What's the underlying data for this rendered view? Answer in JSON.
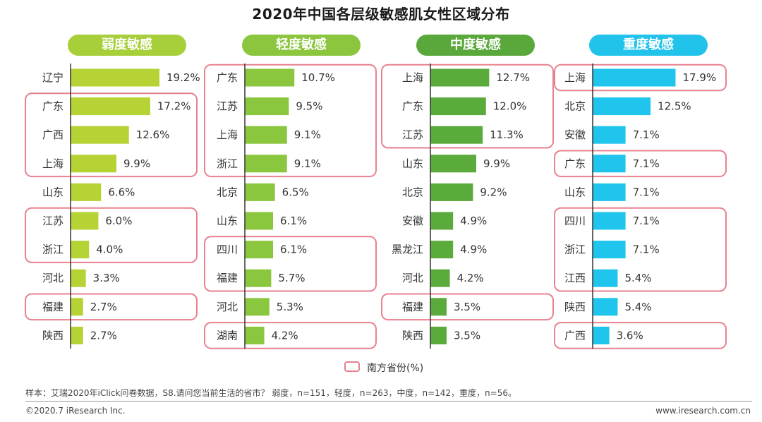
{
  "title": "2020年中国各层级敏感肌女性区域分布",
  "legend": {
    "label": "南方省份(%)",
    "box_color": "#e8818f"
  },
  "footnote": "样本：艾瑞2020年iClick问卷数据，S8.请问您当前生活的省市？ 弱度，n=151，轻度，n=263，中度，n=142，重度，n=56。",
  "copyright": "©2020.7 iResearch Inc.",
  "website": "www.iresearch.com.cn",
  "chart_data": [
    {
      "type": "bar",
      "title": "弱度敏感",
      "color": "#b5d334",
      "header_color": "#a6cf3a",
      "value_max": 19.2,
      "categories": [
        "辽宁",
        "广东",
        "广西",
        "上海",
        "山东",
        "江苏",
        "浙江",
        "河北",
        "福建",
        "陕西"
      ],
      "values": [
        19.2,
        17.2,
        12.6,
        9.9,
        6.6,
        6.0,
        4.0,
        3.3,
        2.7,
        2.7
      ],
      "labels": [
        "19.2%",
        "17.2%",
        "12.6%",
        "9.9%",
        "6.6%",
        "6.0%",
        "4.0%",
        "3.3%",
        "2.7%",
        "2.7%"
      ],
      "southern_groups": [
        [
          1,
          3
        ],
        [
          5,
          6
        ],
        [
          8,
          8
        ]
      ]
    },
    {
      "type": "bar",
      "title": "轻度敏感",
      "color": "#8bc63f",
      "header_color": "#8cc63f",
      "value_max": 19.2,
      "categories": [
        "广东",
        "江苏",
        "上海",
        "浙江",
        "北京",
        "山东",
        "四川",
        "福建",
        "河北",
        "湖南"
      ],
      "values": [
        10.7,
        9.5,
        9.1,
        9.1,
        6.5,
        6.1,
        6.1,
        5.7,
        5.3,
        4.2
      ],
      "labels": [
        "10.7%",
        "9.5%",
        "9.1%",
        "9.1%",
        "6.5%",
        "6.1%",
        "6.1%",
        "5.7%",
        "5.3%",
        "4.2%"
      ],
      "southern_groups": [
        [
          0,
          3
        ],
        [
          6,
          7
        ],
        [
          9,
          9
        ]
      ]
    },
    {
      "type": "bar",
      "title": "中度敏感",
      "color": "#5aaa3c",
      "header_color": "#5aa83c",
      "value_max": 19.2,
      "categories": [
        "上海",
        "广东",
        "江苏",
        "山东",
        "北京",
        "安徽",
        "黑龙江",
        "河北",
        "福建",
        "陕西"
      ],
      "values": [
        12.7,
        12.0,
        11.3,
        9.9,
        9.2,
        4.9,
        4.9,
        4.2,
        3.5,
        3.5
      ],
      "labels": [
        "12.7%",
        "12.0%",
        "11.3%",
        "9.9%",
        "9.2%",
        "4.9%",
        "4.9%",
        "4.2%",
        "3.5%",
        "3.5%"
      ],
      "southern_groups": [
        [
          0,
          2
        ],
        [
          8,
          8
        ]
      ]
    },
    {
      "type": "bar",
      "title": "重度敏感",
      "color": "#1fc5ec",
      "header_color": "#22c3ea",
      "value_max": 19.2,
      "categories": [
        "上海",
        "北京",
        "安徽",
        "广东",
        "山东",
        "四川",
        "浙江",
        "江西",
        "陕西",
        "广西"
      ],
      "values": [
        17.9,
        12.5,
        7.1,
        7.1,
        7.1,
        7.1,
        7.1,
        5.4,
        5.4,
        3.6
      ],
      "labels": [
        "17.9%",
        "12.5%",
        "7.1%",
        "7.1%",
        "7.1%",
        "7.1%",
        "7.1%",
        "5.4%",
        "5.4%",
        "3.6%"
      ],
      "southern_groups": [
        [
          0,
          0
        ],
        [
          3,
          3
        ],
        [
          5,
          7
        ],
        [
          9,
          9
        ]
      ]
    }
  ]
}
